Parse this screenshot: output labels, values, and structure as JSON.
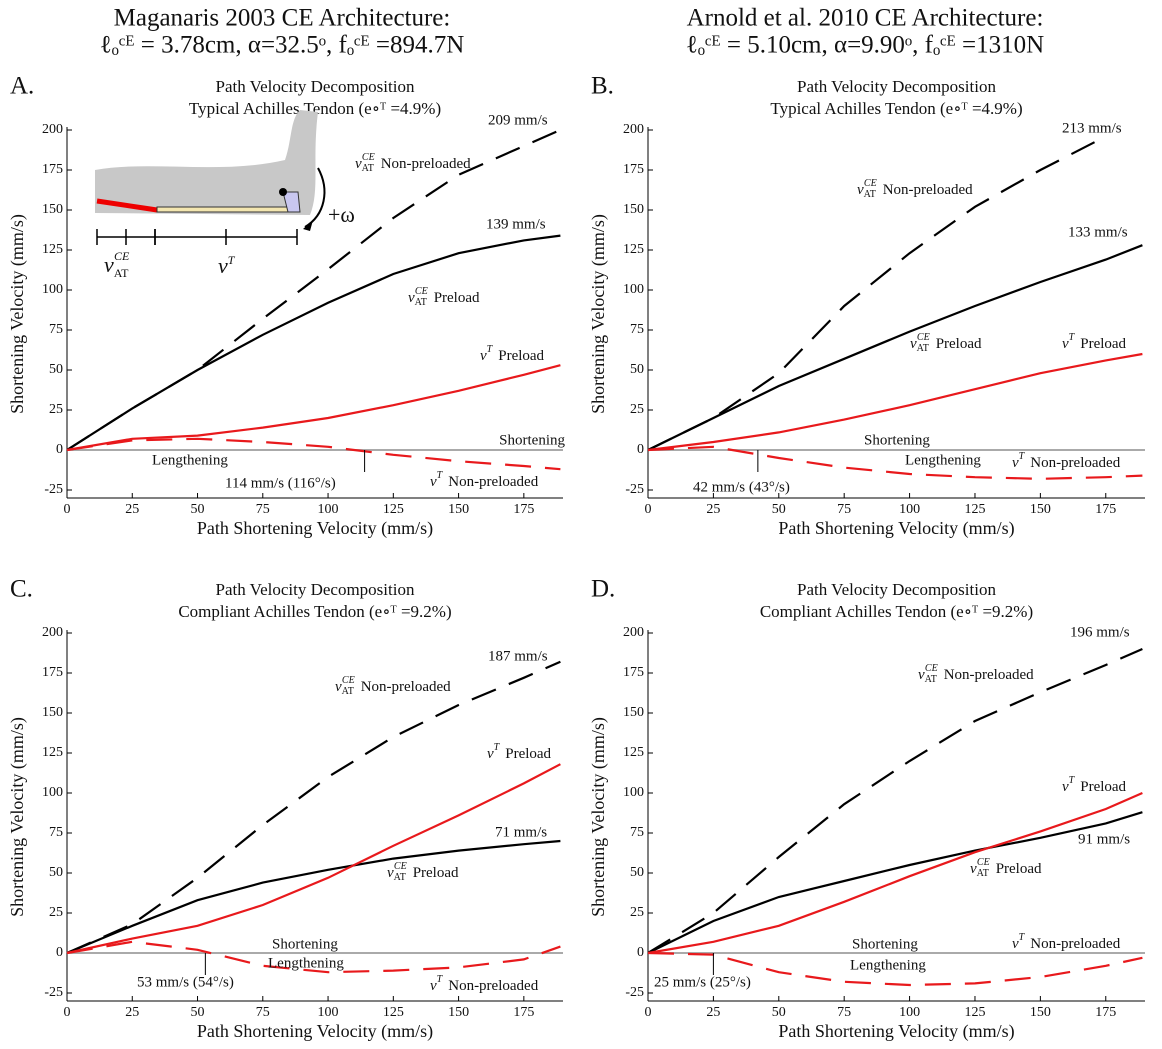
{
  "column_titles": [
    {
      "line1": "Maganaris 2003 CE Architecture:",
      "line2": "ℓₒᶜᴱ = 3.78cm, α=32.5ᵒ, fₒᶜᴱ =894.7N"
    },
    {
      "line1": "Arnold et al. 2010 CE Architecture:",
      "line2": "ℓₒᶜᴱ = 5.10cm, α=9.90ᵒ, fₒᶜᴱ =1310N"
    }
  ],
  "chart_data": [
    {
      "type": "line",
      "panel": "A.",
      "title": "Path Velocity Decomposition",
      "subtitle": "Typical Achilles Tendon (e∘ᵀ =4.9%)",
      "xlabel": "Path Shortening Velocity (mm/s)",
      "ylabel": "Shortening Velocity (mm/s)",
      "x": [
        0,
        25,
        50,
        75,
        100,
        125,
        150,
        175,
        189
      ],
      "xlim": [
        0,
        190
      ],
      "ylim": [
        -30,
        200
      ],
      "xticks": [
        0,
        25,
        50,
        75,
        100,
        125,
        150,
        175
      ],
      "yticks": [
        -25,
        0,
        25,
        50,
        75,
        100,
        125,
        150,
        175,
        200
      ],
      "zero_line": true,
      "series": [
        {
          "symbol": {
            "base": "v",
            "sub": "AT",
            "sup": "CE"
          },
          "name": "Non-preloaded",
          "color": "#000000",
          "dashed": true,
          "values": [
            0,
            26,
            50,
            82,
            113,
            145,
            172,
            190,
            200
          ]
        },
        {
          "symbol": {
            "base": "v",
            "sub": "AT",
            "sup": "CE"
          },
          "name": "Preload",
          "color": "#000000",
          "dashed": false,
          "values": [
            0,
            26,
            50,
            72,
            92,
            110,
            123,
            131,
            134
          ]
        },
        {
          "symbol": {
            "base": "v",
            "sup": "T"
          },
          "name": "Preload",
          "color": "#e8191c",
          "dashed": false,
          "values": [
            0,
            7,
            9,
            14,
            20,
            28,
            37,
            47,
            53
          ]
        },
        {
          "symbol": {
            "base": "v",
            "sup": "T"
          },
          "name": "Non-preloaded",
          "color": "#e8191c",
          "dashed": true,
          "values": [
            0,
            6,
            7,
            5,
            2,
            -3,
            -7,
            -10,
            -12
          ]
        }
      ],
      "end_labels": [
        "209 mm/s",
        "139 mm/s"
      ],
      "zero_labels": [
        "Shortening",
        "Lengthening"
      ],
      "crossing": {
        "value": 114,
        "label": "114 mm/s (116°/s)"
      },
      "inset": {
        "omega": "+ω",
        "symbols": [
          {
            "base": "v",
            "sub": "AT",
            "sup": "CE"
          },
          {
            "base": "v",
            "sup": "T"
          }
        ]
      }
    },
    {
      "type": "line",
      "panel": "B.",
      "title": "Path Velocity Decomposition",
      "subtitle": "Typical Achilles Tendon (e∘ᵀ =4.9%)",
      "xlabel": "Path Shortening Velocity (mm/s)",
      "ylabel": "Shortening Velocity (mm/s)",
      "x": [
        0,
        25,
        50,
        75,
        100,
        125,
        150,
        175,
        189
      ],
      "xlim": [
        0,
        190
      ],
      "ylim": [
        -30,
        200
      ],
      "xticks": [
        0,
        25,
        50,
        75,
        100,
        125,
        150,
        175
      ],
      "yticks": [
        -25,
        0,
        25,
        50,
        75,
        100,
        125,
        150,
        175,
        200
      ],
      "zero_line": true,
      "series": [
        {
          "symbol": {
            "base": "v",
            "sub": "AT",
            "sup": "CE"
          },
          "name": "Non-preloaded",
          "color": "#000000",
          "dashed": true,
          "values": [
            0,
            20,
            48,
            90,
            123,
            152,
            175,
            196,
            null
          ]
        },
        {
          "symbol": {
            "base": "v",
            "sub": "AT",
            "sup": "CE"
          },
          "name": "Preload",
          "color": "#000000",
          "dashed": false,
          "values": [
            0,
            20,
            40,
            57,
            74,
            90,
            105,
            119,
            128
          ]
        },
        {
          "symbol": {
            "base": "v",
            "sup": "T"
          },
          "name": "Preload",
          "color": "#e8191c",
          "dashed": false,
          "values": [
            0,
            5,
            11,
            19,
            28,
            38,
            48,
            56,
            60
          ]
        },
        {
          "symbol": {
            "base": "v",
            "sup": "T"
          },
          "name": "Non-preloaded",
          "color": "#e8191c",
          "dashed": true,
          "values": [
            0,
            2,
            -5,
            -11,
            -15,
            -17,
            -18,
            -17,
            -16
          ]
        }
      ],
      "end_labels": [
        "213 mm/s",
        "133 mm/s"
      ],
      "zero_labels": [
        "Shortening",
        "Lengthening"
      ],
      "crossing": {
        "value": 42,
        "label": "42 mm/s (43°/s)"
      }
    },
    {
      "type": "line",
      "panel": "C.",
      "title": "Path Velocity Decomposition",
      "subtitle": "Compliant Achilles Tendon (e∘ᵀ =9.2%)",
      "xlabel": "Path Shortening Velocity (mm/s)",
      "ylabel": "Shortening Velocity (mm/s)",
      "x": [
        0,
        25,
        50,
        75,
        100,
        125,
        150,
        175,
        189
      ],
      "xlim": [
        0,
        190
      ],
      "ylim": [
        -30,
        200
      ],
      "xticks": [
        0,
        25,
        50,
        75,
        100,
        125,
        150,
        175
      ],
      "yticks": [
        -25,
        0,
        25,
        50,
        75,
        100,
        125,
        150,
        175,
        200
      ],
      "zero_line": true,
      "series": [
        {
          "symbol": {
            "base": "v",
            "sub": "AT",
            "sup": "CE"
          },
          "name": "Non-preloaded",
          "color": "#000000",
          "dashed": true,
          "values": [
            0,
            18,
            47,
            80,
            110,
            135,
            155,
            172,
            182
          ]
        },
        {
          "symbol": {
            "base": "v",
            "sub": "AT",
            "sup": "CE"
          },
          "name": "Preload",
          "color": "#000000",
          "dashed": false,
          "values": [
            0,
            17,
            33,
            44,
            52,
            59,
            64,
            68,
            70
          ]
        },
        {
          "symbol": {
            "base": "v",
            "sup": "T"
          },
          "name": "Preload",
          "color": "#e8191c",
          "dashed": false,
          "values": [
            0,
            9,
            17,
            30,
            47,
            67,
            86,
            106,
            118
          ]
        },
        {
          "symbol": {
            "base": "v",
            "sup": "T"
          },
          "name": "Non-preloaded",
          "color": "#e8191c",
          "dashed": true,
          "values": [
            0,
            7,
            2,
            -8,
            -12,
            -11,
            -9,
            -4,
            4
          ]
        }
      ],
      "end_labels": [
        "187 mm/s",
        "71 mm/s"
      ],
      "zero_labels": [
        "Shortening",
        "Lengthening"
      ],
      "crossing": {
        "value": 53,
        "label": "53 mm/s (54°/s)"
      }
    },
    {
      "type": "line",
      "panel": "D.",
      "title": "Path Velocity Decomposition",
      "subtitle": "Compliant Achilles Tendon (e∘ᵀ =9.2%)",
      "xlabel": "Path Shortening Velocity (mm/s)",
      "ylabel": "Shortening Velocity (mm/s)",
      "x": [
        0,
        25,
        50,
        75,
        100,
        125,
        150,
        175,
        189
      ],
      "xlim": [
        0,
        190
      ],
      "ylim": [
        -30,
        200
      ],
      "xticks": [
        0,
        25,
        50,
        75,
        100,
        125,
        150,
        175
      ],
      "yticks": [
        -25,
        0,
        25,
        50,
        75,
        100,
        125,
        150,
        175,
        200
      ],
      "zero_line": true,
      "series": [
        {
          "symbol": {
            "base": "v",
            "sub": "AT",
            "sup": "CE"
          },
          "name": "Non-preloaded",
          "color": "#000000",
          "dashed": true,
          "values": [
            0,
            25,
            60,
            93,
            120,
            145,
            163,
            180,
            190
          ]
        },
        {
          "symbol": {
            "base": "v",
            "sub": "AT",
            "sup": "CE"
          },
          "name": "Preload",
          "color": "#000000",
          "dashed": false,
          "values": [
            0,
            20,
            35,
            45,
            55,
            64,
            72,
            81,
            88
          ]
        },
        {
          "symbol": {
            "base": "v",
            "sup": "T"
          },
          "name": "Preload",
          "color": "#e8191c",
          "dashed": false,
          "values": [
            0,
            7,
            17,
            32,
            48,
            63,
            76,
            90,
            100
          ]
        },
        {
          "symbol": {
            "base": "v",
            "sup": "T"
          },
          "name": "Non-preloaded",
          "color": "#e8191c",
          "dashed": true,
          "values": [
            0,
            -1,
            -12,
            -18,
            -20,
            -19,
            -15,
            -8,
            -3
          ]
        }
      ],
      "end_labels": [
        "196 mm/s",
        "91 mm/s"
      ],
      "zero_labels": [
        "Shortening",
        "Lengthening"
      ],
      "crossing": {
        "value": 25,
        "label": "25 mm/s (25°/s)"
      }
    }
  ]
}
